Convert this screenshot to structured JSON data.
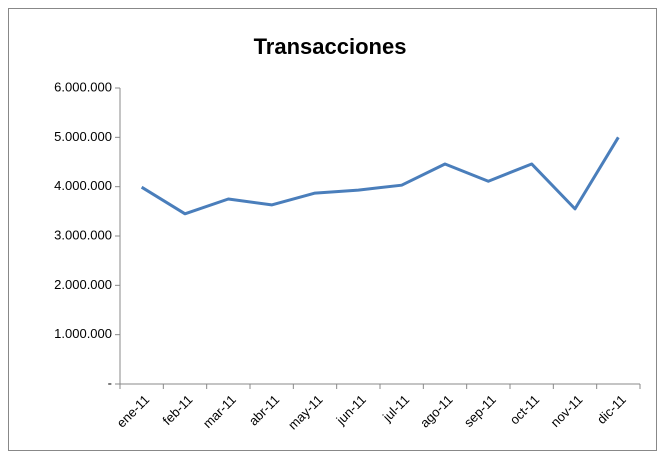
{
  "chart_data": {
    "type": "line",
    "title": "Transacciones",
    "categories": [
      "ene-11",
      "feb-11",
      "mar-11",
      "abr-11",
      "may-11",
      "jun-11",
      "jul-11",
      "ago-11",
      "sep-11",
      "oct-11",
      "nov-11",
      "dic-11"
    ],
    "series": [
      {
        "name": "Transacciones",
        "color": "#4a7ebb",
        "values": [
          3990000,
          3450000,
          3750000,
          3630000,
          3870000,
          3930000,
          4030000,
          4460000,
          4110000,
          4460000,
          3550000,
          5000000
        ]
      }
    ],
    "ylim": [
      0,
      6000000
    ],
    "yticks": [
      {
        "value": 0,
        "label": "-"
      },
      {
        "value": 1000000,
        "label": "1.000.000"
      },
      {
        "value": 2000000,
        "label": "2.000.000"
      },
      {
        "value": 3000000,
        "label": "3.000.000"
      },
      {
        "value": 4000000,
        "label": "4.000.000"
      },
      {
        "value": 5000000,
        "label": "5.000.000"
      },
      {
        "value": 6000000,
        "label": "6.000.000"
      }
    ],
    "grid": false
  }
}
